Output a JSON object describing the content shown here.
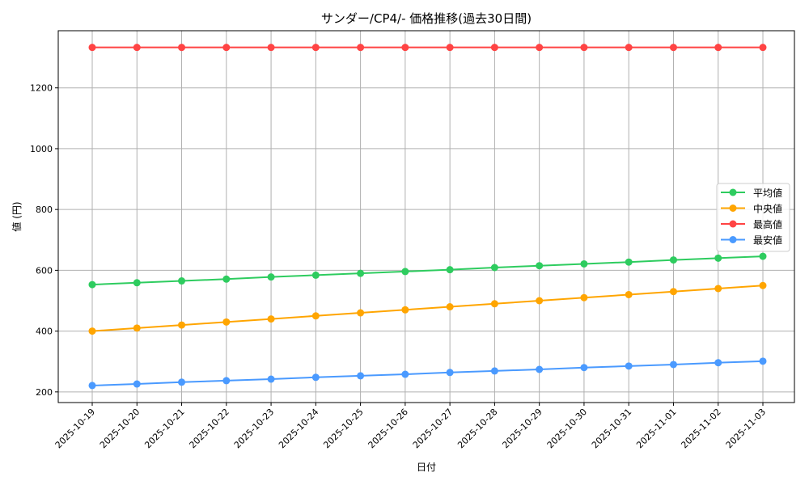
{
  "chart_data": {
    "type": "line",
    "title": "サンダー/CP4/- 価格推移(過去30日間)",
    "xlabel": "日付",
    "ylabel": "値 (円)",
    "categories": [
      "2025-10-19",
      "2025-10-20",
      "2025-10-21",
      "2025-10-22",
      "2025-10-23",
      "2025-10-24",
      "2025-10-25",
      "2025-10-26",
      "2025-10-27",
      "2025-10-28",
      "2025-10-29",
      "2025-10-30",
      "2025-10-31",
      "2025-11-01",
      "2025-11-02",
      "2025-11-03"
    ],
    "yticks": [
      200,
      400,
      600,
      800,
      1000,
      1200
    ],
    "ylim": [
      165,
      1388
    ],
    "grid": true,
    "legend_position": "center-right",
    "series": [
      {
        "name": "平均値",
        "color": "#2ecc5f",
        "values": [
          553,
          559,
          565,
          571,
          578,
          584,
          590,
          596,
          602,
          609,
          615,
          621,
          627,
          634,
          640,
          646
        ]
      },
      {
        "name": "中央値",
        "color": "#ffa500",
        "values": [
          400,
          410,
          420,
          430,
          440,
          450,
          460,
          470,
          480,
          490,
          500,
          510,
          520,
          530,
          540,
          550
        ]
      },
      {
        "name": "最高値",
        "color": "#ff4444",
        "values": [
          1333,
          1333,
          1333,
          1333,
          1333,
          1333,
          1333,
          1333,
          1333,
          1333,
          1333,
          1333,
          1333,
          1333,
          1333,
          1333
        ]
      },
      {
        "name": "最安値",
        "color": "#4a9aff",
        "values": [
          221,
          226,
          232,
          237,
          242,
          248,
          253,
          258,
          264,
          269,
          274,
          280,
          285,
          290,
          296,
          301
        ]
      }
    ]
  }
}
